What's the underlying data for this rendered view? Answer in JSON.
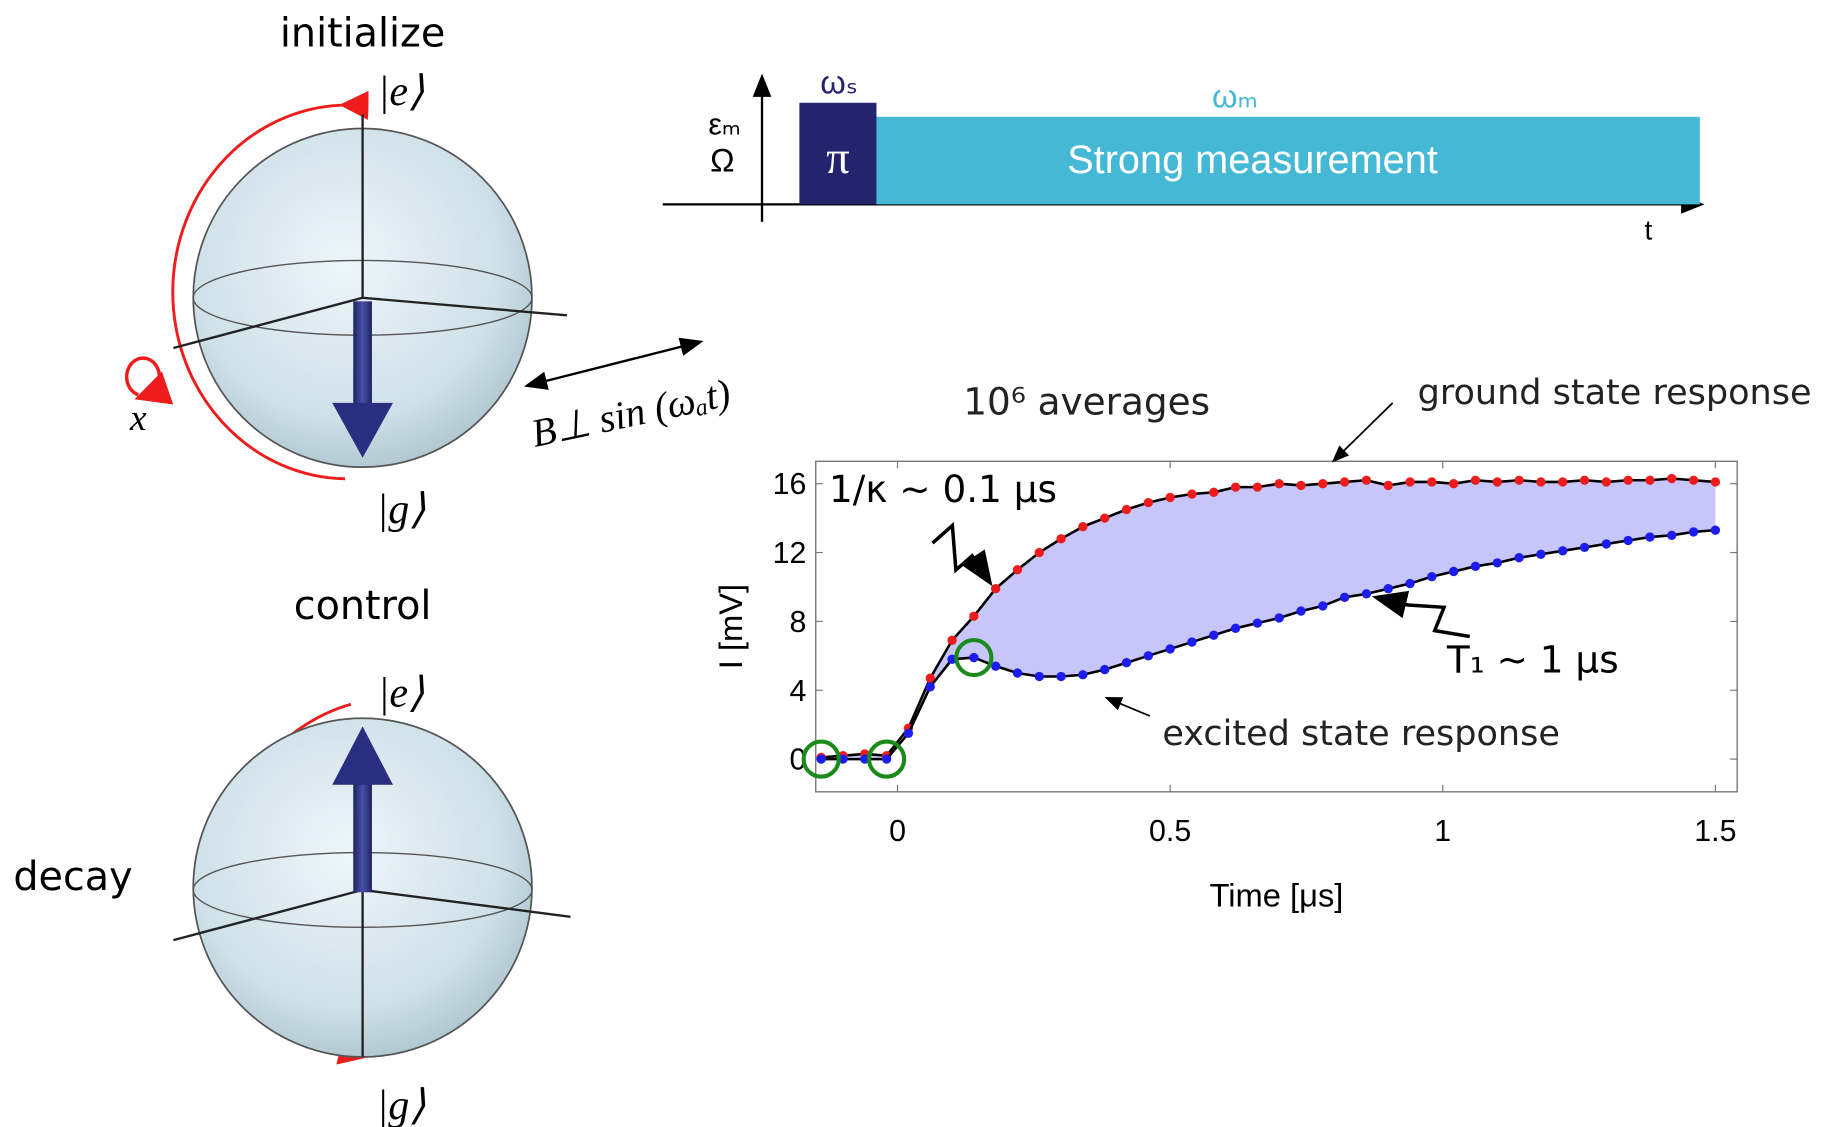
{
  "bloch": {
    "top_title": "initialize",
    "top_e": "|e⟩",
    "top_g": "|g⟩",
    "rotation_axis": "x",
    "drive": "B⊥ sin (ωₐt)",
    "bottom_title": "control",
    "bottom_side": "decay",
    "bottom_e": "|e⟩",
    "bottom_g": "|g⟩"
  },
  "pulse_sequence": {
    "drive_label": "ωₛ",
    "drive_pulse": "π",
    "measure_label": "ωₘ",
    "measure_pulse": "Strong measurement",
    "amp_label_1": "εₘ",
    "amp_label_2": "Ω",
    "time_label": "t"
  },
  "chart_data": {
    "type": "scatter",
    "x_label": "Time [μs]",
    "y_label": "I [mV]",
    "annotations": [
      "10⁶ averages",
      "1/κ ~ 0.1 μs",
      "T₁ ~ 1 μs"
    ],
    "x": [
      -0.14,
      -0.1,
      -0.06,
      -0.02,
      0.02,
      0.06,
      0.1,
      0.14,
      0.18,
      0.22,
      0.26,
      0.3,
      0.34,
      0.38,
      0.42,
      0.46,
      0.5,
      0.54,
      0.58,
      0.62,
      0.66,
      0.7,
      0.74,
      0.78,
      0.82,
      0.86,
      0.9,
      0.94,
      0.98,
      1.02,
      1.06,
      1.1,
      1.14,
      1.18,
      1.22,
      1.26,
      1.3,
      1.34,
      1.38,
      1.42,
      1.46,
      1.5
    ],
    "series": [
      {
        "name": "ground state response",
        "color": "#ee1c1c",
        "values": [
          0.1,
          0.2,
          0.3,
          0.2,
          1.8,
          4.7,
          6.9,
          8.3,
          9.9,
          11.0,
          12.0,
          12.8,
          13.5,
          14.0,
          14.5,
          14.9,
          15.2,
          15.4,
          15.5,
          15.8,
          15.8,
          16.0,
          15.9,
          16.0,
          16.1,
          16.2,
          15.9,
          16.1,
          16.1,
          16.0,
          16.2,
          16.1,
          16.2,
          16.1,
          16.1,
          16.2,
          16.1,
          16.2,
          16.2,
          16.3,
          16.2,
          16.1
        ]
      },
      {
        "name": "excited state response",
        "color": "#1c1cee",
        "values": [
          0.0,
          0.0,
          0.0,
          0.0,
          1.5,
          4.2,
          5.8,
          5.9,
          5.4,
          5.0,
          4.8,
          4.8,
          4.9,
          5.2,
          5.6,
          6.0,
          6.4,
          6.8,
          7.2,
          7.6,
          7.9,
          8.2,
          8.6,
          8.9,
          9.4,
          9.6,
          9.9,
          10.2,
          10.6,
          10.9,
          11.2,
          11.4,
          11.7,
          11.9,
          12.1,
          12.3,
          12.5,
          12.7,
          12.9,
          13.0,
          13.2,
          13.3
        ]
      }
    ],
    "line_color": "#000000",
    "fill_between_color": "#c6c6fa",
    "highlight": {
      "series": 1,
      "indices": [
        0,
        3,
        7
      ],
      "color": "#1a8a1a"
    },
    "xlim": [
      -0.15,
      1.54
    ],
    "ylim": [
      -1.9,
      17.3
    ],
    "xticks": [
      0,
      0.5,
      1,
      1.5
    ],
    "yticks": [
      0,
      4,
      8,
      12,
      16
    ],
    "grid": false
  }
}
